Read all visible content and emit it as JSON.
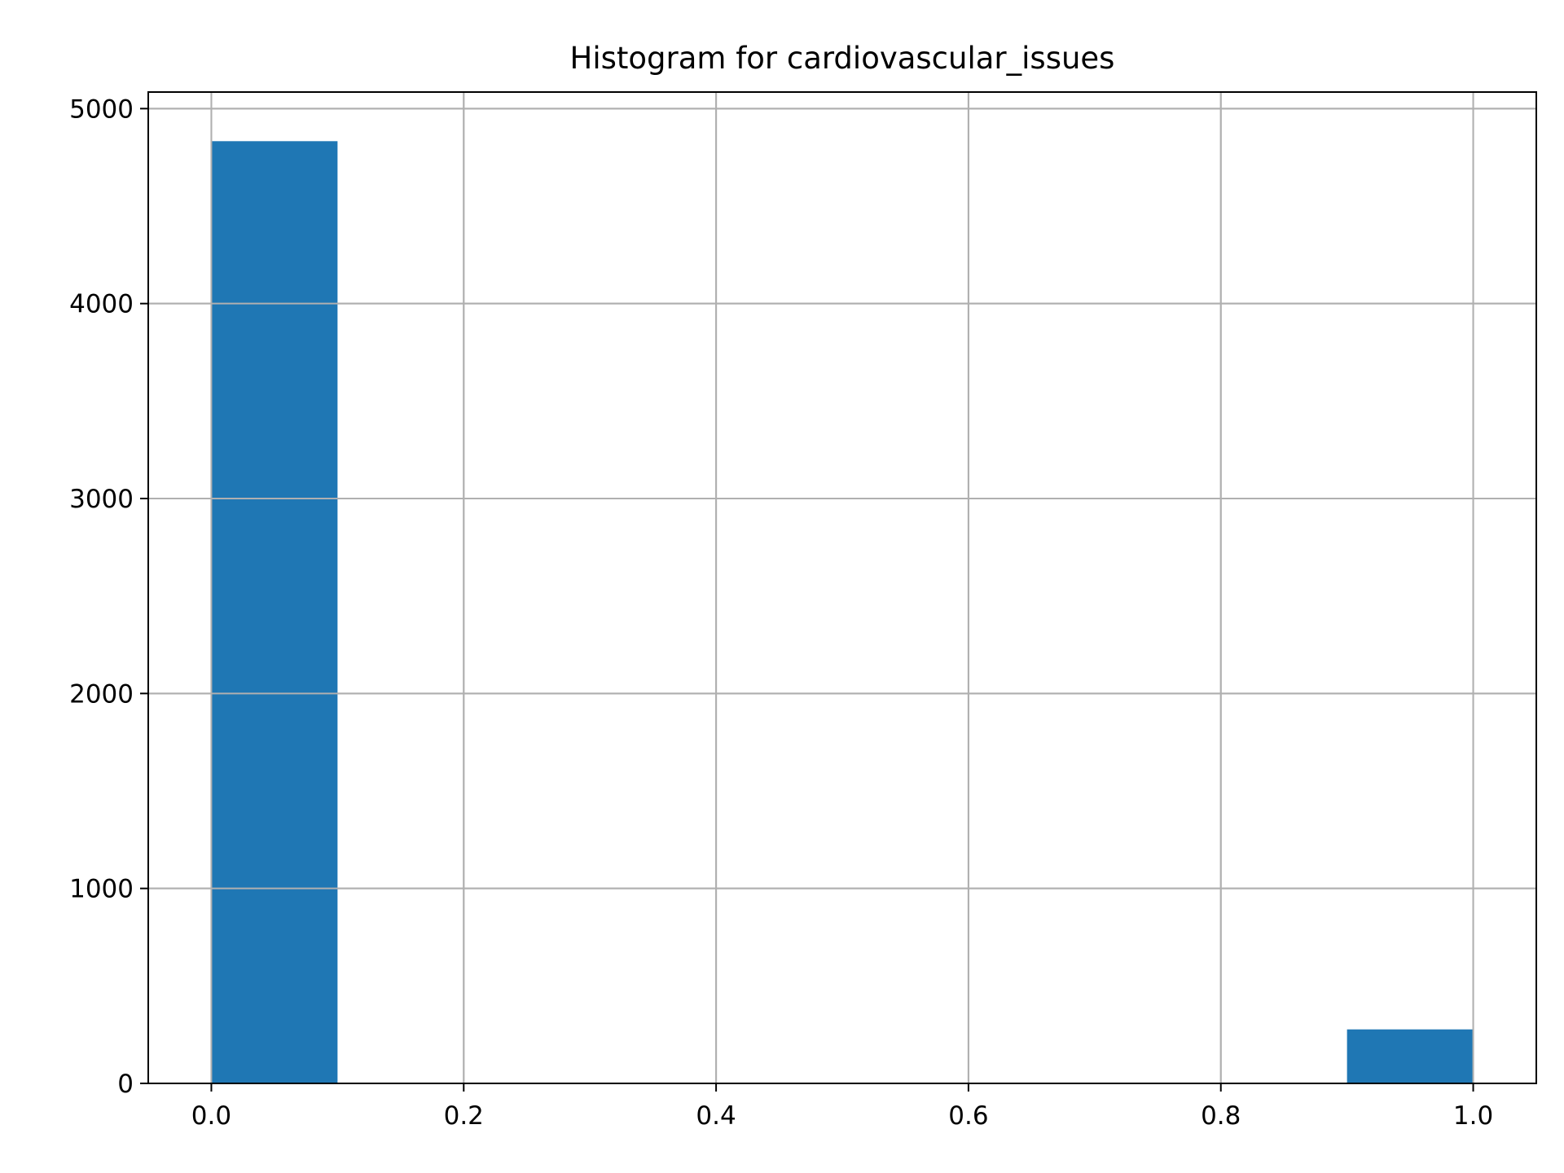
{
  "chart_data": {
    "type": "bar",
    "title": "Histogram for cardiovascular_issues",
    "xlabel": "",
    "ylabel": "",
    "xlim": [
      -0.05,
      1.05
    ],
    "ylim": [
      0,
      5085
    ],
    "x_ticks": [
      0.0,
      0.2,
      0.4,
      0.6,
      0.8,
      1.0
    ],
    "x_tick_labels": [
      "0.0",
      "0.2",
      "0.4",
      "0.6",
      "0.8",
      "1.0"
    ],
    "y_ticks": [
      0,
      1000,
      2000,
      3000,
      4000,
      5000
    ],
    "y_tick_labels": [
      "0",
      "1000",
      "2000",
      "3000",
      "4000",
      "5000"
    ],
    "grid": true,
    "bins": [
      {
        "x0": 0.0,
        "x1": 0.1,
        "count": 4833
      },
      {
        "x0": 0.1,
        "x1": 0.2,
        "count": 0
      },
      {
        "x0": 0.2,
        "x1": 0.3,
        "count": 0
      },
      {
        "x0": 0.3,
        "x1": 0.4,
        "count": 0
      },
      {
        "x0": 0.4,
        "x1": 0.5,
        "count": 0
      },
      {
        "x0": 0.5,
        "x1": 0.6,
        "count": 0
      },
      {
        "x0": 0.6,
        "x1": 0.7,
        "count": 0
      },
      {
        "x0": 0.7,
        "x1": 0.8,
        "count": 0
      },
      {
        "x0": 0.8,
        "x1": 0.9,
        "count": 0
      },
      {
        "x0": 0.9,
        "x1": 1.0,
        "count": 277
      }
    ],
    "colors": {
      "bar": "#1f77b4",
      "grid": "#b0b0b0",
      "axis": "#000000",
      "background": "#ffffff"
    }
  }
}
